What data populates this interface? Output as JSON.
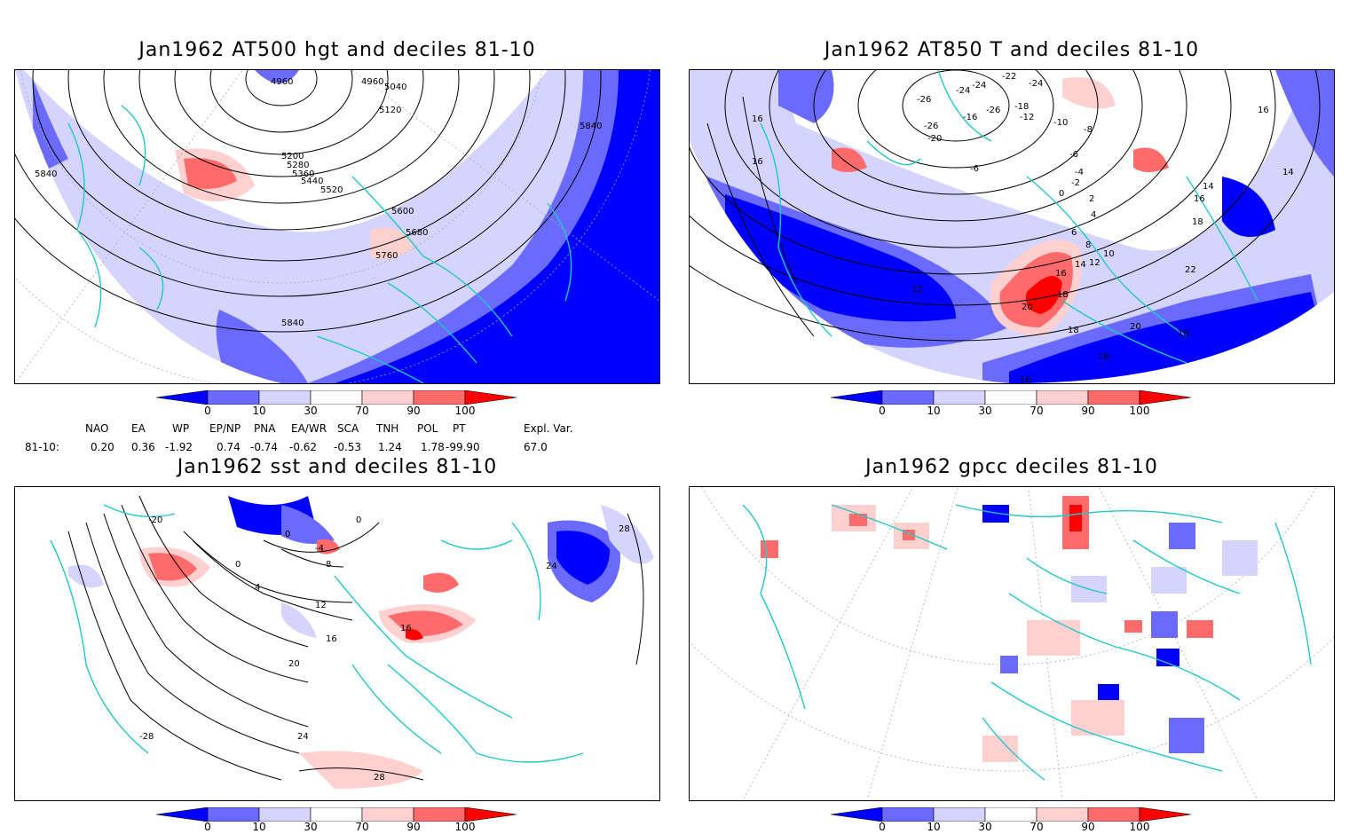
{
  "panels": [
    {
      "title": "Jan1962 AT500 hgt and deciles 81-10",
      "contour_labels": [
        "4960",
        "5040",
        "4960",
        "5120",
        "5200",
        "5280",
        "5360",
        "5440",
        "5520",
        "5600",
        "5680",
        "5760",
        "5840",
        "5840",
        "5840"
      ]
    },
    {
      "title": "Jan1962 AT850 T and deciles 81-10",
      "contour_labels": [
        "16",
        "16",
        "-22",
        "-24",
        "-24",
        "-26",
        "-26",
        "-24",
        "-18",
        "-16",
        "-26",
        "-20",
        "-12",
        "-10",
        "-6",
        "-8",
        "-6",
        "-4",
        "-2",
        "0",
        "2",
        "4",
        "6",
        "8",
        "10",
        "12",
        "14",
        "16",
        "18",
        "20",
        "22",
        "14",
        "14",
        "16",
        "16",
        "18",
        "18",
        "12",
        "16",
        "18",
        "20",
        "16"
      ]
    },
    {
      "title": "Jan1962 sst and deciles 81-10",
      "contour_labels": [
        "-20",
        "0",
        "0",
        "0",
        "-4",
        "4",
        "8",
        "12",
        "16",
        "16",
        "20",
        "24",
        "24",
        "28",
        "-28",
        "28"
      ]
    },
    {
      "title": "Jan1962 gpcc deciles 81-10",
      "contour_labels": []
    }
  ],
  "colorbar": {
    "ticks": [
      "0",
      "10",
      "30",
      "70",
      "90",
      "100"
    ],
    "colors": [
      "#0000ff",
      "#6a6aff",
      "#d4d4ff",
      "#ffffff",
      "#ffd0d0",
      "#ff6a6a",
      "#ff0000"
    ]
  },
  "indices": {
    "headers": [
      "NAO",
      "EA",
      "WP",
      "EP/NP",
      "PNA",
      "EA/WR",
      "SCA",
      "TNH",
      "POL",
      "PT",
      "Expl. Var."
    ],
    "row_label": "81-10:",
    "values": [
      "0.20",
      "0.36",
      "-1.92",
      "0.74",
      "-0.74",
      "-0.62",
      "-0.53",
      "1.24",
      "1.78",
      "-99.90",
      "67.0"
    ]
  }
}
